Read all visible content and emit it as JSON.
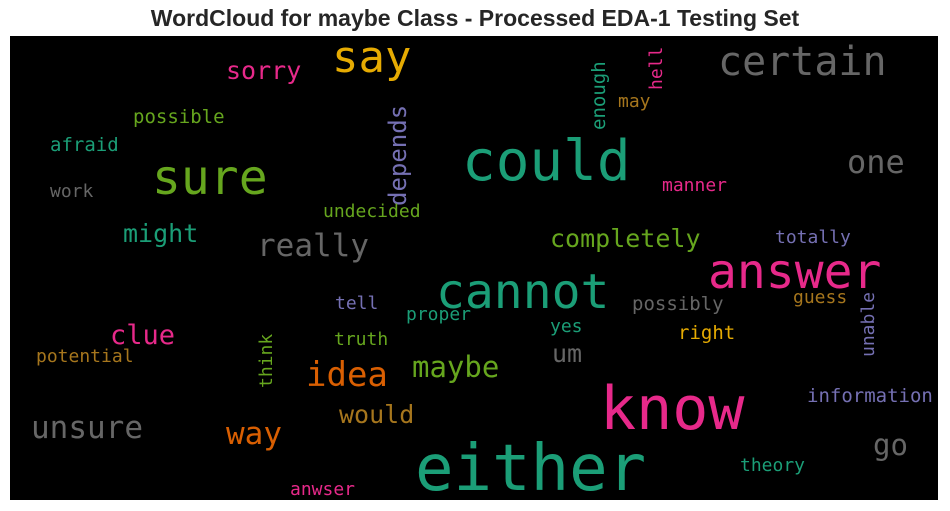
{
  "chart_data": {
    "type": "wordcloud",
    "title": "WordCloud for maybe Class - Processed EDA-1 Testing Set",
    "background": "#000000",
    "words": [
      {
        "text": "say",
        "color": "#e6ab02"
      },
      {
        "text": "certain",
        "color": "#666666"
      },
      {
        "text": "sorry",
        "color": "#e7298a"
      },
      {
        "text": "enough",
        "color": "#1b9e77"
      },
      {
        "text": "hell",
        "color": "#e7298a"
      },
      {
        "text": "may",
        "color": "#a6761d"
      },
      {
        "text": "possible",
        "color": "#66a61e"
      },
      {
        "text": "depends",
        "color": "#7570b3"
      },
      {
        "text": "afraid",
        "color": "#1b9e77"
      },
      {
        "text": "could",
        "color": "#1b9e77"
      },
      {
        "text": "one",
        "color": "#666666"
      },
      {
        "text": "sure",
        "color": "#66a61e"
      },
      {
        "text": "work",
        "color": "#666666"
      },
      {
        "text": "manner",
        "color": "#e7298a"
      },
      {
        "text": "undecided",
        "color": "#66a61e"
      },
      {
        "text": "might",
        "color": "#1b9e77"
      },
      {
        "text": "completely",
        "color": "#66a61e"
      },
      {
        "text": "totally",
        "color": "#7570b3"
      },
      {
        "text": "really",
        "color": "#666666"
      },
      {
        "text": "answer",
        "color": "#e7298a"
      },
      {
        "text": "cannot",
        "color": "#1b9e77"
      },
      {
        "text": "guess",
        "color": "#a6761d"
      },
      {
        "text": "tell",
        "color": "#7570b3"
      },
      {
        "text": "possibly",
        "color": "#666666"
      },
      {
        "text": "proper",
        "color": "#1b9e77"
      },
      {
        "text": "clue",
        "color": "#e7298a"
      },
      {
        "text": "yes",
        "color": "#1b9e77"
      },
      {
        "text": "unable",
        "color": "#7570b3"
      },
      {
        "text": "truth",
        "color": "#66a61e"
      },
      {
        "text": "right",
        "color": "#e6ab02"
      },
      {
        "text": "think",
        "color": "#66a61e"
      },
      {
        "text": "um",
        "color": "#666666"
      },
      {
        "text": "potential",
        "color": "#a6761d"
      },
      {
        "text": "idea",
        "color": "#d95f02"
      },
      {
        "text": "maybe",
        "color": "#66a61e"
      },
      {
        "text": "know",
        "color": "#e7298a"
      },
      {
        "text": "information",
        "color": "#7570b3"
      },
      {
        "text": "would",
        "color": "#a6761d"
      },
      {
        "text": "unsure",
        "color": "#666666"
      },
      {
        "text": "way",
        "color": "#d95f02"
      },
      {
        "text": "go",
        "color": "#666666"
      },
      {
        "text": "either",
        "color": "#1b9e77"
      },
      {
        "text": "theory",
        "color": "#1b9e77"
      },
      {
        "text": "anwser",
        "color": "#e7298a"
      }
    ]
  }
}
